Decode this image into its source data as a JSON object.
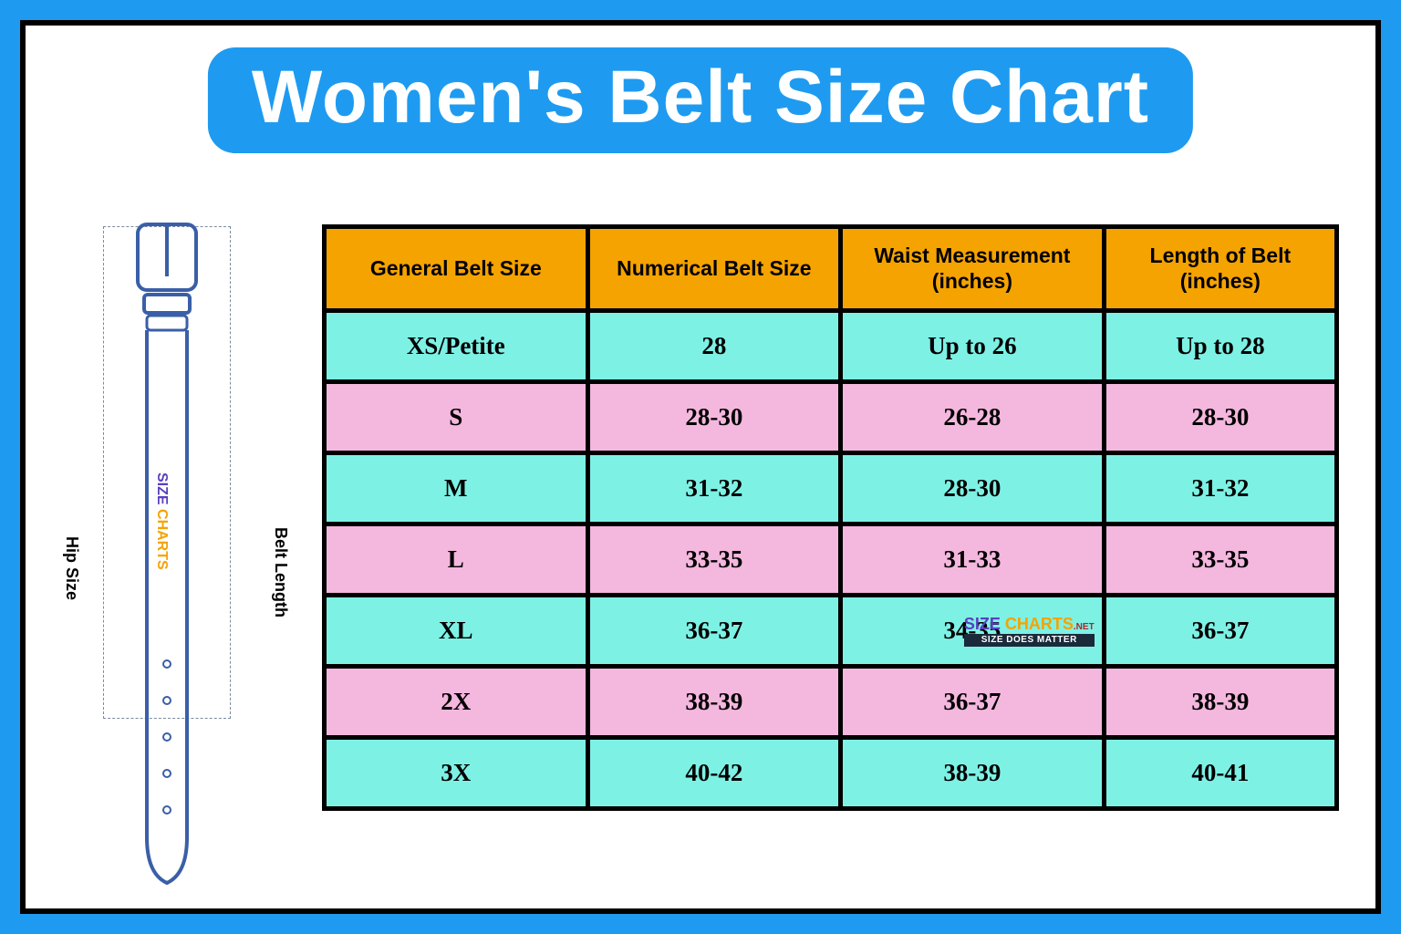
{
  "title": "Women's Belt Size Chart",
  "diagram": {
    "left_label": "Hip Size",
    "right_label": "Belt Length",
    "logo_part1": "SIZE",
    "logo_part2": " CHARTS"
  },
  "table": {
    "columns": [
      "General Belt Size",
      "Numerical Belt Size",
      "Waist Measurement (inches)",
      "Length of Belt (inches)"
    ],
    "rows": [
      {
        "general": "XS/Petite",
        "numerical": "28",
        "waist": "Up to 26",
        "length": "Up to 28"
      },
      {
        "general": "S",
        "numerical": "28-30",
        "waist": "26-28",
        "length": "28-30"
      },
      {
        "general": "M",
        "numerical": "31-32",
        "waist": "28-30",
        "length": "31-32"
      },
      {
        "general": "L",
        "numerical": "33-35",
        "waist": "31-33",
        "length": "33-35"
      },
      {
        "general": "XL",
        "numerical": "36-37",
        "waist": "34-35",
        "length": "36-37"
      },
      {
        "general": "2X",
        "numerical": "38-39",
        "waist": "36-37",
        "length": "38-39"
      },
      {
        "general": "3X",
        "numerical": "40-42",
        "waist": "38-39",
        "length": "40-41"
      }
    ],
    "header_bg": "#f5a300",
    "row_color_odd": "#7ef1e5",
    "row_color_even": "#f4b7de",
    "border_color": "#000000",
    "col_widths": [
      "26%",
      "25%",
      "26%",
      "23%"
    ]
  },
  "watermark": {
    "brand1": "SIZE",
    "brand2": " CHARTS",
    "suffix": ".NET",
    "tagline": "SIZE DOES MATTER",
    "row_index": 4,
    "col_index": 2
  },
  "colors": {
    "page_bg": "#1e9bf0",
    "inner_bg": "#ffffff",
    "inner_border": "#000000",
    "title_bg": "#1e9bf0",
    "title_fg": "#ffffff",
    "belt_stroke": "#3a5fa8"
  }
}
